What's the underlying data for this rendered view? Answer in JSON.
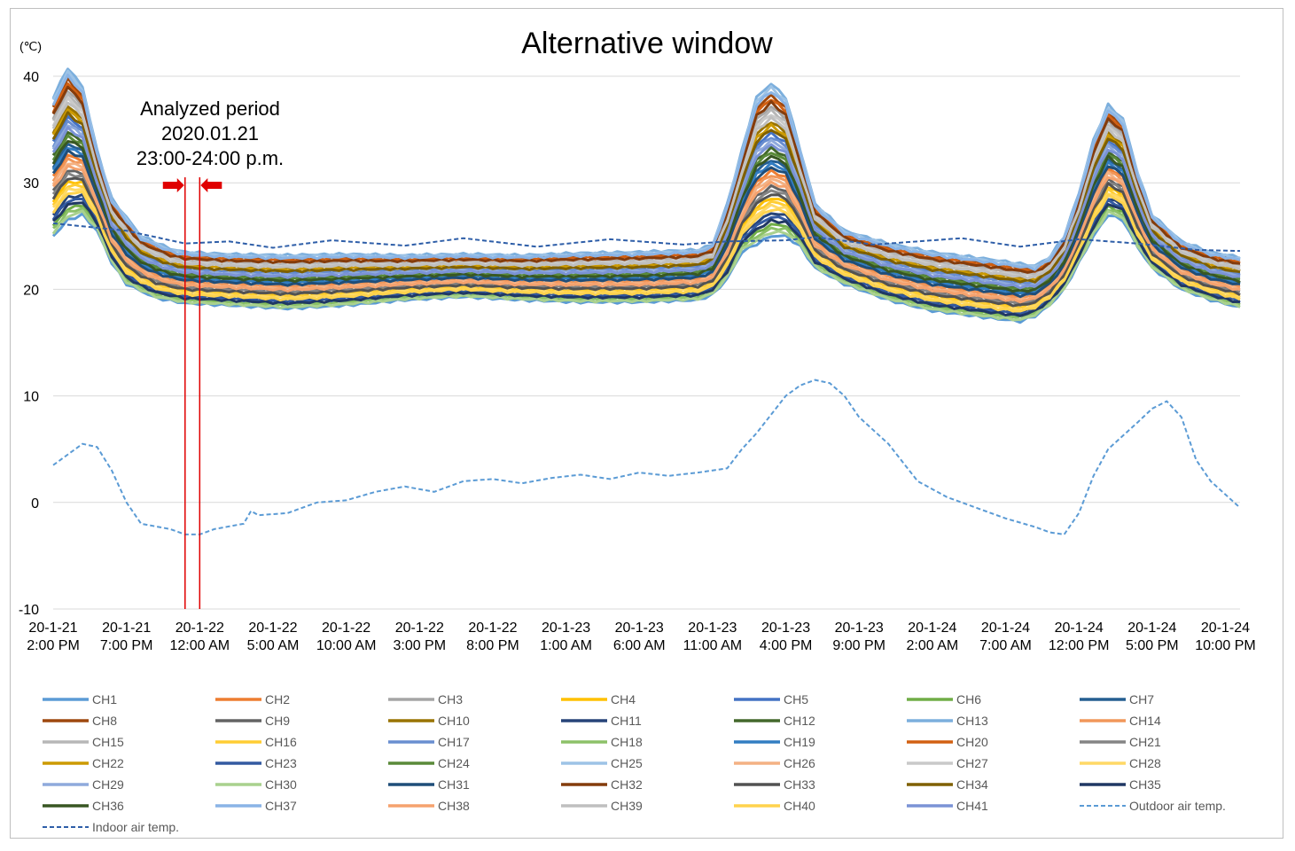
{
  "chart_data": {
    "type": "line",
    "title": "Alternative window",
    "y_unit_label": "(℃)",
    "ylim": [
      -10,
      40
    ],
    "y_ticks": [
      "40",
      "30",
      "20",
      "10",
      "0",
      "-10"
    ],
    "y_tick_values": [
      40,
      30,
      20,
      10,
      0,
      -10
    ],
    "x_ticks": [
      [
        "20-1-21",
        "2:00 PM"
      ],
      [
        "20-1-21",
        "7:00 PM"
      ],
      [
        "20-1-22",
        "12:00 AM"
      ],
      [
        "20-1-22",
        "5:00 AM"
      ],
      [
        "20-1-22",
        "10:00 AM"
      ],
      [
        "20-1-22",
        "3:00 PM"
      ],
      [
        "20-1-22",
        "8:00 PM"
      ],
      [
        "20-1-23",
        "1:00 AM"
      ],
      [
        "20-1-23",
        "6:00 AM"
      ],
      [
        "20-1-23",
        "11:00 AM"
      ],
      [
        "20-1-23",
        "4:00 PM"
      ],
      [
        "20-1-23",
        "9:00 PM"
      ],
      [
        "20-1-24",
        "2:00 AM"
      ],
      [
        "20-1-24",
        "7:00 AM"
      ],
      [
        "20-1-24",
        "12:00 PM"
      ],
      [
        "20-1-24",
        "5:00 PM"
      ],
      [
        "20-1-24",
        "10:00 PM"
      ]
    ],
    "x_range_hours": [
      0,
      81
    ],
    "grid": "horizontal",
    "legend_position": "bottom",
    "annotation": {
      "lines": [
        "Analyzed period",
        "2020.01.21",
        "23:00-24:00 p.m."
      ],
      "start_hour": 9,
      "end_hour": 10
    },
    "indoor_air_temp_points": [
      [
        0,
        26.2
      ],
      [
        5,
        25.5
      ],
      [
        9,
        24.3
      ],
      [
        12,
        24.5
      ],
      [
        15,
        23.9
      ],
      [
        19,
        24.6
      ],
      [
        24,
        24.1
      ],
      [
        28,
        24.8
      ],
      [
        33,
        24.0
      ],
      [
        38,
        24.7
      ],
      [
        43,
        24.2
      ],
      [
        46,
        24.5
      ],
      [
        50,
        24.6
      ],
      [
        52,
        24.9
      ],
      [
        56,
        24.2
      ],
      [
        62,
        24.8
      ],
      [
        66,
        24.0
      ],
      [
        70,
        24.7
      ],
      [
        74,
        24.3
      ],
      [
        78,
        23.7
      ],
      [
        81,
        23.6
      ]
    ],
    "outdoor_air_temp_points": [
      [
        0,
        3.5
      ],
      [
        2,
        5.5
      ],
      [
        3,
        5.2
      ],
      [
        4,
        3.0
      ],
      [
        5,
        0.0
      ],
      [
        6,
        -2.0
      ],
      [
        8,
        -2.5
      ],
      [
        9,
        -3.0
      ],
      [
        10,
        -3.0
      ],
      [
        11,
        -2.5
      ],
      [
        13,
        -2.0
      ],
      [
        13.5,
        -0.8
      ],
      [
        14,
        -1.2
      ],
      [
        16,
        -1.0
      ],
      [
        18,
        0.0
      ],
      [
        20,
        0.2
      ],
      [
        22,
        1.0
      ],
      [
        24,
        1.5
      ],
      [
        26,
        1.0
      ],
      [
        28,
        2.0
      ],
      [
        30,
        2.2
      ],
      [
        32,
        1.8
      ],
      [
        34,
        2.3
      ],
      [
        36,
        2.6
      ],
      [
        38,
        2.2
      ],
      [
        40,
        2.8
      ],
      [
        42,
        2.5
      ],
      [
        44,
        2.8
      ],
      [
        46,
        3.2
      ],
      [
        47,
        5.0
      ],
      [
        48,
        6.5
      ],
      [
        50,
        10.0
      ],
      [
        51,
        11.0
      ],
      [
        52,
        11.5
      ],
      [
        53,
        11.2
      ],
      [
        54,
        10.0
      ],
      [
        55,
        8.0
      ],
      [
        57,
        5.5
      ],
      [
        59,
        2.0
      ],
      [
        61,
        0.5
      ],
      [
        63,
        -0.5
      ],
      [
        65,
        -1.5
      ],
      [
        67,
        -2.3
      ],
      [
        68,
        -2.8
      ],
      [
        69,
        -3.0
      ],
      [
        70,
        -1.0
      ],
      [
        71,
        2.5
      ],
      [
        72,
        5.0
      ],
      [
        74,
        7.5
      ],
      [
        75,
        8.8
      ],
      [
        76,
        9.5
      ],
      [
        77,
        8.0
      ],
      [
        78,
        4.0
      ],
      [
        79,
        2.0
      ],
      [
        81,
        -0.5
      ]
    ],
    "channel_envelope": {
      "upper_points": [
        [
          0,
          38.0
        ],
        [
          1,
          40.8
        ],
        [
          2,
          39.0
        ],
        [
          3,
          33.0
        ],
        [
          4,
          28.5
        ],
        [
          6,
          25.0
        ],
        [
          8,
          23.8
        ],
        [
          9,
          23.5
        ],
        [
          12,
          23.3
        ],
        [
          16,
          23.2
        ],
        [
          20,
          23.3
        ],
        [
          24,
          23.2
        ],
        [
          28,
          23.3
        ],
        [
          32,
          23.2
        ],
        [
          36,
          23.4
        ],
        [
          40,
          23.5
        ],
        [
          44,
          23.7
        ],
        [
          45,
          24.2
        ],
        [
          46,
          28.0
        ],
        [
          47,
          33.0
        ],
        [
          48,
          38.0
        ],
        [
          49,
          39.3
        ],
        [
          50,
          38.0
        ],
        [
          51,
          33.0
        ],
        [
          52,
          28.0
        ],
        [
          54,
          25.5
        ],
        [
          57,
          24.3
        ],
        [
          60,
          23.5
        ],
        [
          64,
          22.8
        ],
        [
          67,
          22.2
        ],
        [
          68,
          23.0
        ],
        [
          69,
          25.0
        ],
        [
          70,
          29.0
        ],
        [
          71,
          34.0
        ],
        [
          72,
          37.3
        ],
        [
          73,
          36.0
        ],
        [
          74,
          31.0
        ],
        [
          75,
          27.0
        ],
        [
          77,
          24.5
        ],
        [
          79,
          23.5
        ],
        [
          81,
          23.0
        ]
      ],
      "lower_points": [
        [
          0,
          25.0
        ],
        [
          1,
          26.5
        ],
        [
          2,
          27.0
        ],
        [
          3,
          25.5
        ],
        [
          4,
          22.5
        ],
        [
          5,
          20.5
        ],
        [
          7,
          19.2
        ],
        [
          9,
          18.7
        ],
        [
          12,
          18.5
        ],
        [
          16,
          18.2
        ],
        [
          20,
          18.5
        ],
        [
          24,
          19.0
        ],
        [
          28,
          19.3
        ],
        [
          32,
          19.0
        ],
        [
          36,
          18.8
        ],
        [
          40,
          18.8
        ],
        [
          44,
          19.0
        ],
        [
          45,
          19.5
        ],
        [
          46,
          21.0
        ],
        [
          47,
          23.5
        ],
        [
          49,
          25.0
        ],
        [
          50,
          25.0
        ],
        [
          51,
          24.0
        ],
        [
          52,
          22.0
        ],
        [
          54,
          20.5
        ],
        [
          57,
          19.0
        ],
        [
          60,
          18.0
        ],
        [
          64,
          17.3
        ],
        [
          66,
          17.0
        ],
        [
          67,
          17.5
        ],
        [
          68,
          18.5
        ],
        [
          69,
          20.0
        ],
        [
          70,
          22.5
        ],
        [
          71,
          25.0
        ],
        [
          72,
          27.0
        ],
        [
          73,
          26.5
        ],
        [
          74,
          24.0
        ],
        [
          75,
          22.0
        ],
        [
          77,
          20.0
        ],
        [
          79,
          19.0
        ],
        [
          81,
          18.3
        ]
      ]
    },
    "series": [
      {
        "name": "CH1",
        "color": "#5b9bd5"
      },
      {
        "name": "CH2",
        "color": "#ed7d31"
      },
      {
        "name": "CH3",
        "color": "#a5a5a5"
      },
      {
        "name": "CH4",
        "color": "#ffc000"
      },
      {
        "name": "CH5",
        "color": "#4472c4"
      },
      {
        "name": "CH6",
        "color": "#70ad47"
      },
      {
        "name": "CH7",
        "color": "#255e91"
      },
      {
        "name": "CH8",
        "color": "#9e480e"
      },
      {
        "name": "CH9",
        "color": "#636363"
      },
      {
        "name": "CH10",
        "color": "#997300"
      },
      {
        "name": "CH11",
        "color": "#264478"
      },
      {
        "name": "CH12",
        "color": "#43682b"
      },
      {
        "name": "CH13",
        "color": "#7cafdd"
      },
      {
        "name": "CH14",
        "color": "#f1975a"
      },
      {
        "name": "CH15",
        "color": "#b7b7b7"
      },
      {
        "name": "CH16",
        "color": "#ffcd33"
      },
      {
        "name": "CH17",
        "color": "#698ed0"
      },
      {
        "name": "CH18",
        "color": "#8cc168"
      },
      {
        "name": "CH19",
        "color": "#327dc2"
      },
      {
        "name": "CH20",
        "color": "#d26012"
      },
      {
        "name": "CH21",
        "color": "#848484"
      },
      {
        "name": "CH22",
        "color": "#cc9a00"
      },
      {
        "name": "CH23",
        "color": "#335aa1"
      },
      {
        "name": "CH24",
        "color": "#5a8a39"
      },
      {
        "name": "CH25",
        "color": "#9dc3e6"
      },
      {
        "name": "CH26",
        "color": "#f4b183"
      },
      {
        "name": "CH27",
        "color": "#c9c9c9"
      },
      {
        "name": "CH28",
        "color": "#ffd966"
      },
      {
        "name": "CH29",
        "color": "#8faadc"
      },
      {
        "name": "CH30",
        "color": "#a9d18e"
      },
      {
        "name": "CH31",
        "color": "#1f4e79"
      },
      {
        "name": "CH32",
        "color": "#843c0c"
      },
      {
        "name": "CH33",
        "color": "#525252"
      },
      {
        "name": "CH34",
        "color": "#7f6000"
      },
      {
        "name": "CH35",
        "color": "#203864"
      },
      {
        "name": "CH36",
        "color": "#385723"
      },
      {
        "name": "CH37",
        "color": "#8ab4e6"
      },
      {
        "name": "CH38",
        "color": "#f5a26e"
      },
      {
        "name": "CH39",
        "color": "#bfbfbf"
      },
      {
        "name": "CH40",
        "color": "#ffd34d"
      },
      {
        "name": "CH41",
        "color": "#7b93d6"
      },
      {
        "name": "Outdoor air temp.",
        "color": "#5b9bd5",
        "dash": true
      },
      {
        "name": "Indoor air temp.",
        "color": "#2e5ea8",
        "dash": true
      }
    ]
  }
}
